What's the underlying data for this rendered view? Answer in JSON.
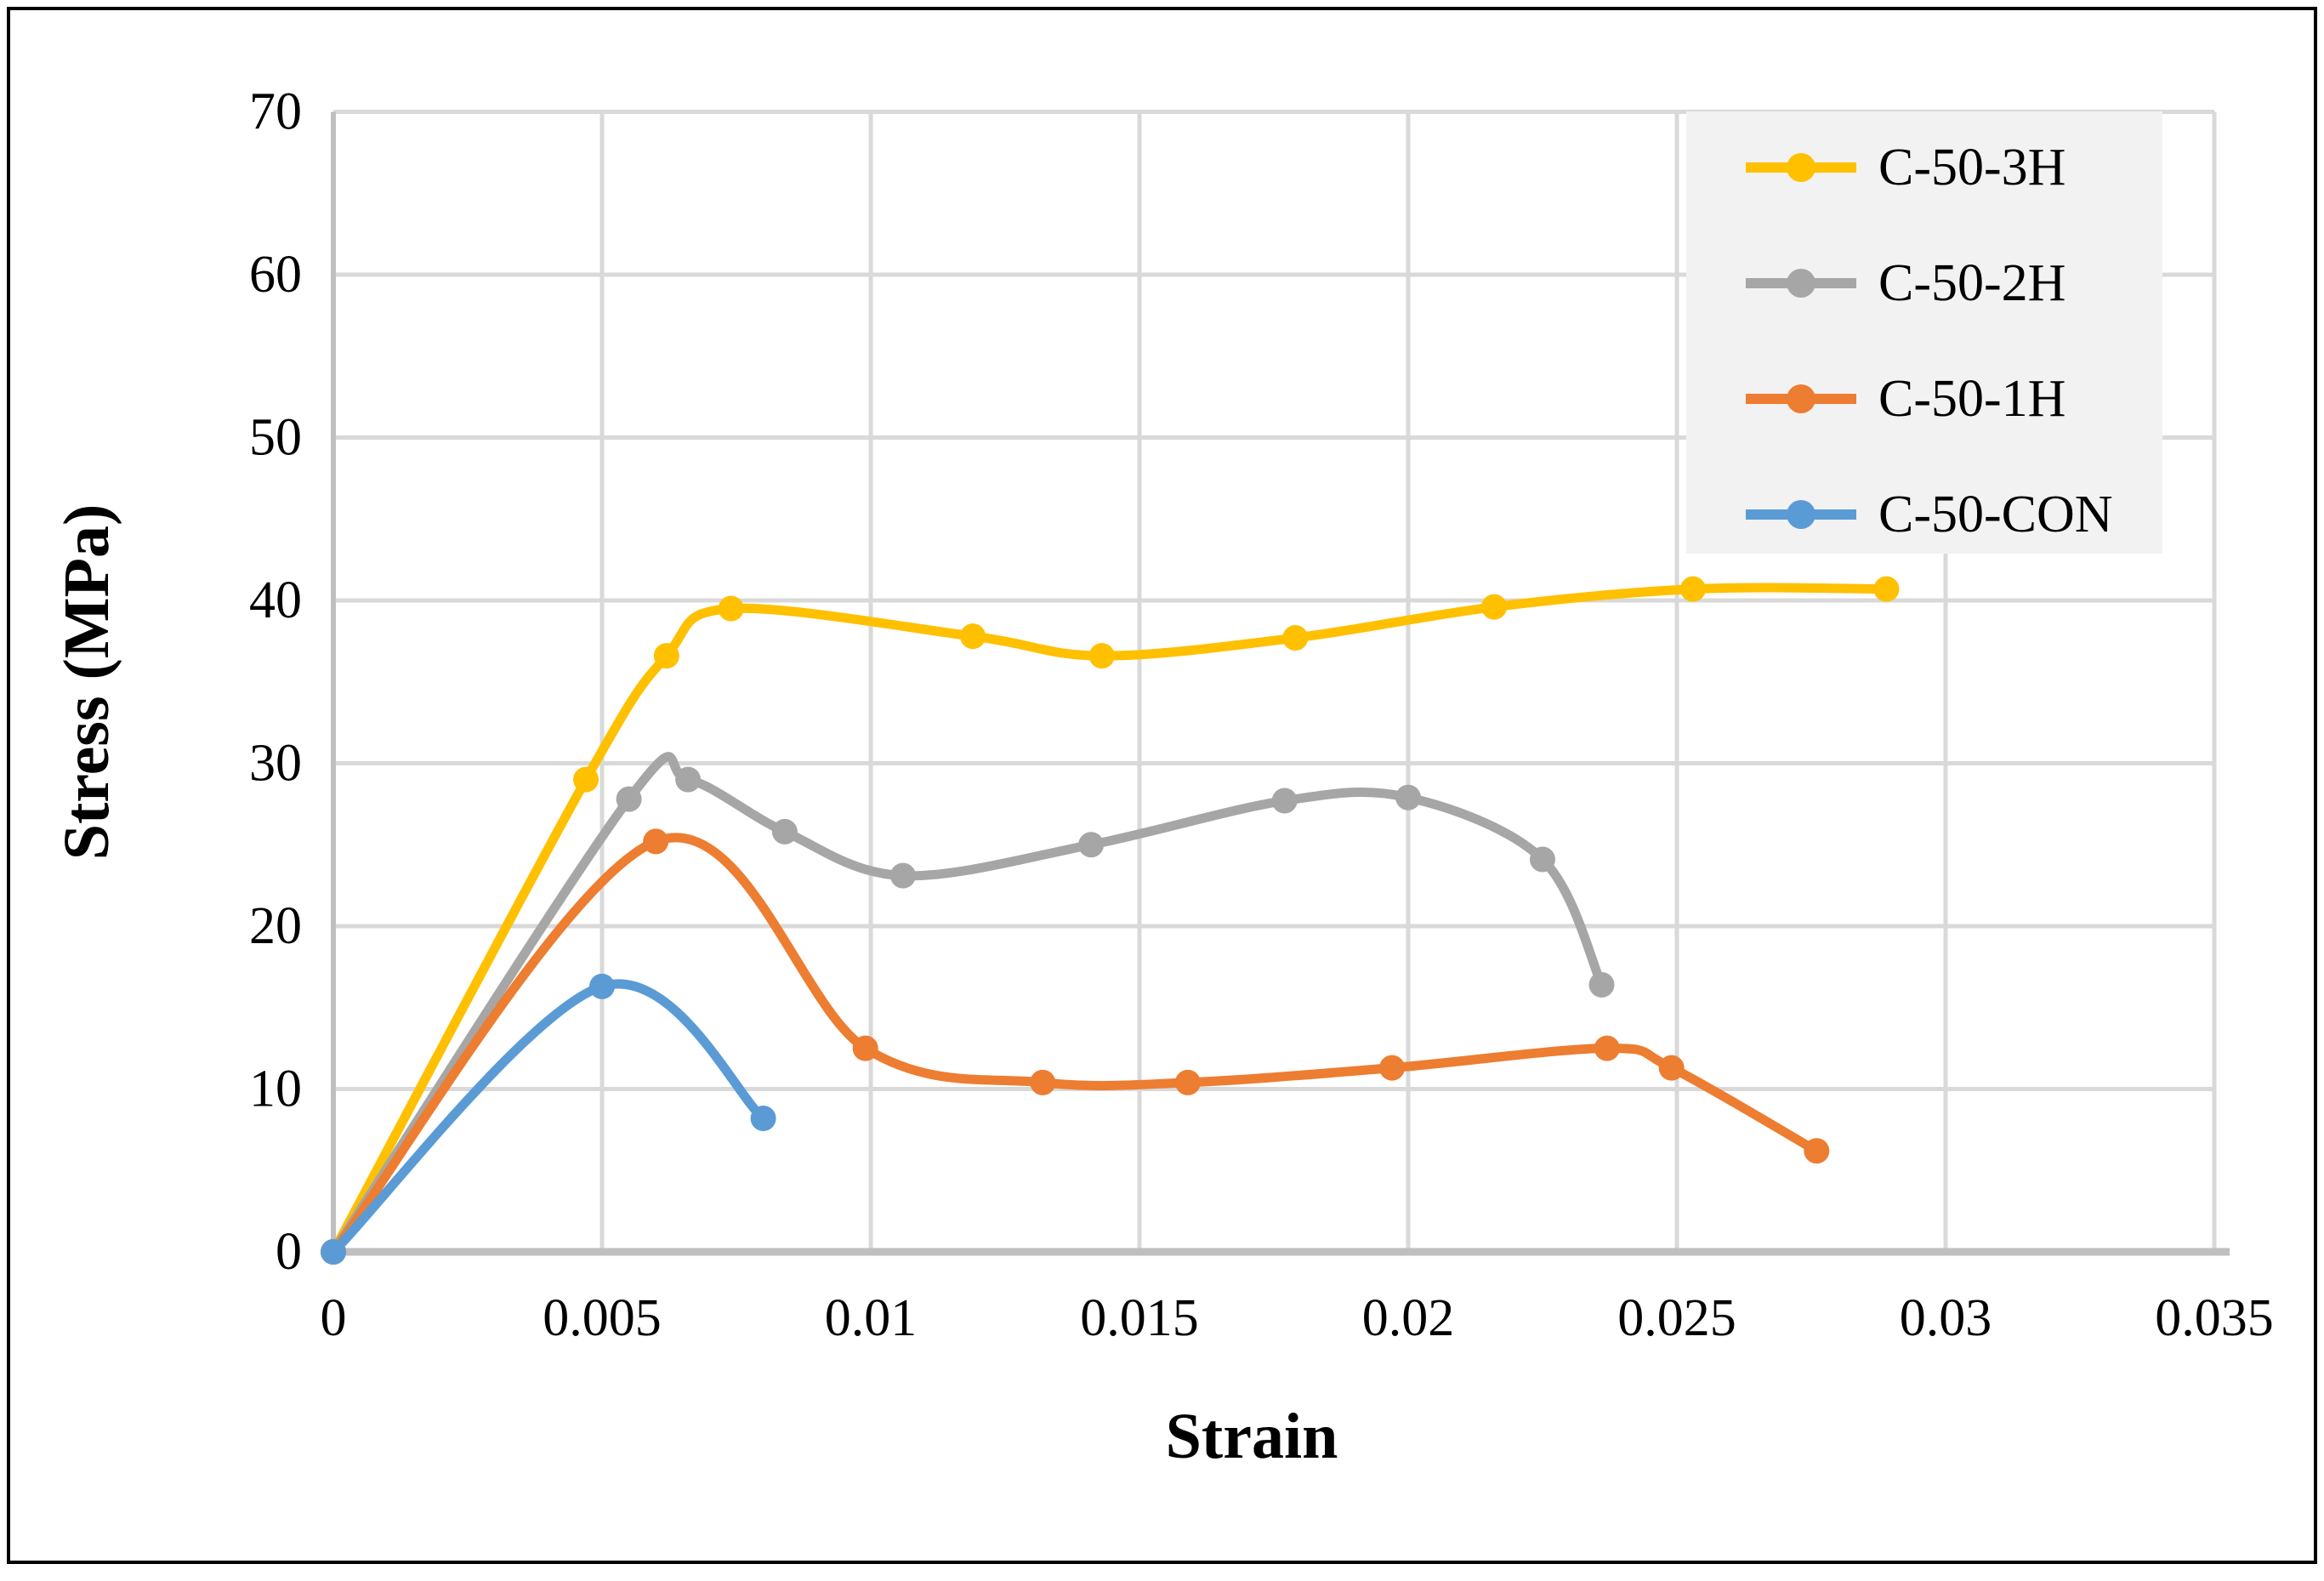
{
  "chart_data": {
    "type": "line",
    "title": "",
    "xlabel": "Strain",
    "ylabel": "Stress (MPa)",
    "xlim": [
      0,
      0.035
    ],
    "ylim": [
      0,
      70
    ],
    "x_tick_values": [
      0,
      0.005,
      0.01,
      0.015,
      0.02,
      0.025,
      0.03,
      0.035
    ],
    "x_ticks": [
      "0",
      "0.005",
      "0.01",
      "0.015",
      "0.02",
      "0.025",
      "0.03",
      "0.035"
    ],
    "y_tick_values": [
      0,
      10,
      20,
      30,
      40,
      50,
      60,
      70
    ],
    "y_ticks": [
      "0",
      "10",
      "20",
      "30",
      "40",
      "50",
      "60",
      "70"
    ],
    "grid": true,
    "line_style": "smooth",
    "marker": "circle",
    "legend_position": "top-right-inside",
    "series": [
      {
        "name": "C-50-3H",
        "color": "#FFC000",
        "points": [
          [
            0,
            0
          ],
          [
            0.0047,
            29.0
          ],
          [
            0.0062,
            36.6
          ],
          [
            0.0074,
            39.5
          ],
          [
            0.0119,
            37.8
          ],
          [
            0.0143,
            36.6
          ],
          [
            0.0179,
            37.7
          ],
          [
            0.0216,
            39.6
          ],
          [
            0.0253,
            40.7
          ],
          [
            0.0289,
            40.7
          ]
        ]
      },
      {
        "name": "C-50-2H",
        "color": "#A6A6A6",
        "points": [
          [
            0,
            0
          ],
          [
            0.0055,
            27.8
          ],
          [
            0.0066,
            29.0
          ],
          [
            0.0084,
            25.8
          ],
          [
            0.0106,
            23.1
          ],
          [
            0.0141,
            25.0
          ],
          [
            0.0177,
            27.7
          ],
          [
            0.02,
            27.9
          ],
          [
            0.0225,
            24.1
          ],
          [
            0.0236,
            16.4
          ]
        ]
      },
      {
        "name": "C-50-1H",
        "color": "#ED7D31",
        "points": [
          [
            0,
            0
          ],
          [
            0.006,
            25.2
          ],
          [
            0.0099,
            12.5
          ],
          [
            0.0132,
            10.4
          ],
          [
            0.0159,
            10.4
          ],
          [
            0.0197,
            11.3
          ],
          [
            0.0237,
            12.5
          ],
          [
            0.0249,
            11.3
          ],
          [
            0.0276,
            6.2
          ]
        ]
      },
      {
        "name": "C-50-CON",
        "color": "#5B9BD5",
        "points": [
          [
            0,
            0
          ],
          [
            0.005,
            16.3
          ],
          [
            0.008,
            8.2
          ]
        ]
      }
    ]
  },
  "styling": {
    "gridline_color": "#D9D9D9",
    "axis_color": "#BFBFBF",
    "legend_bg": "#F2F2F2",
    "text_color": "#000000",
    "background": "#FFFFFF"
  }
}
